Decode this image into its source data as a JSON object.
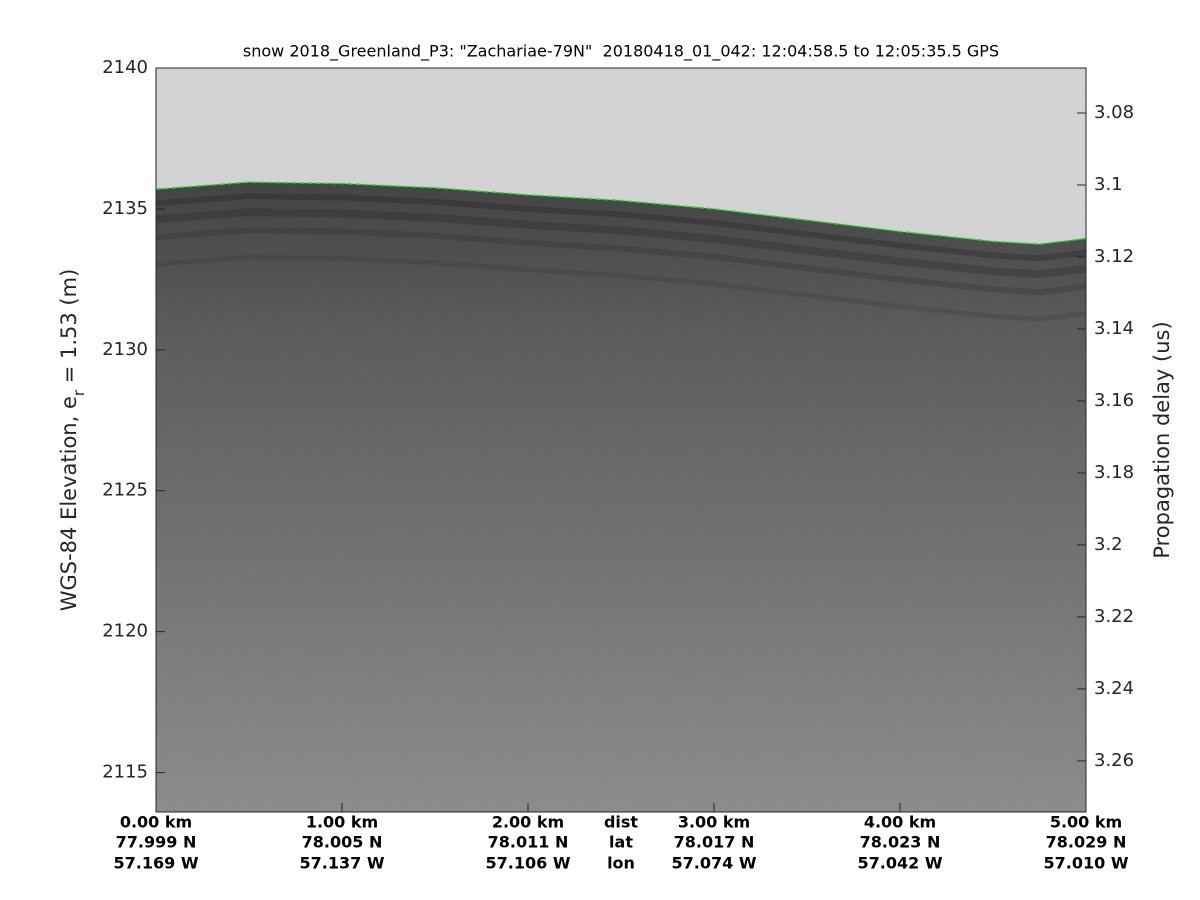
{
  "chart_data": {
    "type": "echogram",
    "title": "snow 2018_Greenland_P3: \"Zachariae-79N\"  20180418_01_042: 12:04:58.5 to 12:05:35.5 GPS",
    "ylabel": "WGS-84 Elevation, e",
    "ylabel_sub": "r",
    "ylabel_rest": " = 1.53 (m)",
    "y2label": "Propagation delay (us)",
    "xlim": [
      0,
      5
    ],
    "xticks": [
      {
        "value": 0,
        "label": "0.00 km"
      },
      {
        "value": 1,
        "label": "1.00 km"
      },
      {
        "value": 2,
        "label": "2.00 km"
      },
      {
        "value": 3,
        "label": "3.00 km"
      },
      {
        "value": 4,
        "label": "4.00 km"
      },
      {
        "value": 5,
        "label": "5.00 km"
      }
    ],
    "lat_labels": [
      "77.999 N",
      "78.005 N",
      "78.011 N",
      "78.017 N",
      "78.023 N",
      "78.029 N"
    ],
    "lon_labels": [
      "57.169 W",
      "57.137 W",
      "57.106 W",
      "57.074 W",
      "57.042 W",
      "57.010 W"
    ],
    "row_labels": [
      "dist",
      "lat",
      "lon"
    ],
    "ylim": [
      2113.6,
      2140
    ],
    "yticks": [
      2115,
      2120,
      2125,
      2130,
      2135,
      2140
    ],
    "y2lim": [
      3.2742,
      3.0675
    ],
    "y2ticks": [
      3.08,
      3.1,
      3.12,
      3.14,
      3.16,
      3.18,
      3.2,
      3.22,
      3.24,
      3.26
    ],
    "series": [
      {
        "color": "#22dd22",
        "x": [
          0,
          0.5,
          1,
          1.5,
          2,
          2.5,
          3,
          3.5,
          4,
          4.5,
          4.75,
          5
        ],
        "values": [
          2135.7,
          2135.95,
          2135.9,
          2135.75,
          2135.5,
          2135.3,
          2135.0,
          2134.6,
          2134.2,
          2133.85,
          2133.75,
          2133.95
        ]
      }
    ]
  }
}
